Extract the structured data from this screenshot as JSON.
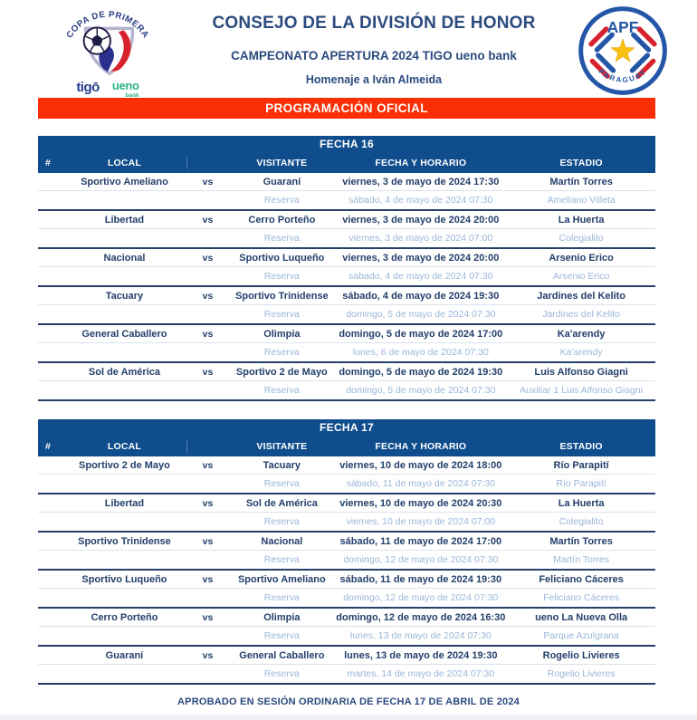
{
  "colors": {
    "navy": "#2b4a7e",
    "table_header_blue": "#0f4d8c",
    "match_text": "#24406b",
    "reserve_text": "#9bb6d9",
    "banner_red": "#fb2e05",
    "tigo_blue": "#243f8f",
    "ueno_green": "#2cb383"
  },
  "header": {
    "title": "CONSEJO DE LA DIVISIÓN DE HONOR",
    "subtitle": "CAMPEONATO APERTURA 2024 TIGO ueno bank",
    "tribute": "Homenaje a Iván Almeida",
    "copa_logo": {
      "arc_text": "COPA DE PRIMERA",
      "sponsor_tigo": "tigō",
      "sponsor_ueno": "ueno",
      "sponsor_ueno_sub": "bank"
    },
    "apf_logo": {
      "top_text": "APF",
      "bottom_text": "PARAGUAY"
    }
  },
  "banner": {
    "label": "PROGRAMACIÓN OFICIAL"
  },
  "table_columns": [
    "#",
    "LOCAL",
    "VISITANTE",
    "FECHA Y HORARIO",
    "ESTADIO"
  ],
  "vs_label": "vs",
  "reserve_label": "Reserva",
  "rounds": [
    {
      "title": "FECHA 16",
      "matches": [
        {
          "local": "Sportivo Ameliano",
          "visitante": "Guaraní",
          "fecha": "viernes, 3 de mayo de 2024 17:30",
          "estadio": "Martín Torres",
          "reserva_fecha": "sábado, 4 de mayo de 2024 07:30",
          "reserva_estadio": "Ameliano Villeta"
        },
        {
          "local": "Libertad",
          "visitante": "Cerro Porteño",
          "fecha": "viernes, 3 de mayo de 2024 20:00",
          "estadio": "La Huerta",
          "reserva_fecha": "viernes, 3 de mayo de 2024 07:00",
          "reserva_estadio": "Colegialito"
        },
        {
          "local": "Nacional",
          "visitante": "Sportivo Luqueño",
          "fecha": "viernes, 3 de mayo de 2024 20:00",
          "estadio": "Arsenio Erico",
          "reserva_fecha": "sábado, 4 de mayo de 2024 07:30",
          "reserva_estadio": "Arsenio Erico"
        },
        {
          "local": "Tacuary",
          "visitante": "Sportivo Trinidense",
          "fecha": "sábado, 4 de mayo de 2024 19:30",
          "estadio": "Jardines del Kelito",
          "reserva_fecha": "domingo, 5 de mayo de 2024 07:30",
          "reserva_estadio": "Jardines del Kelito"
        },
        {
          "local": "General Caballero",
          "visitante": "Olimpia",
          "fecha": "domingo, 5 de mayo de 2024 17:00",
          "estadio": "Ka'arendy",
          "reserva_fecha": "lunes, 6 de mayo de 2024 07:30",
          "reserva_estadio": "Ka'arendy"
        },
        {
          "local": "Sol de América",
          "visitante": "Sportivo 2 de Mayo",
          "fecha": "domingo, 5 de mayo de 2024 19:30",
          "estadio": "Luis Alfonso Giagni",
          "reserva_fecha": "domingo, 5 de mayo de 2024 07:30",
          "reserva_estadio": "Auxiliar 1 Luis Alfonso Giagni"
        }
      ]
    },
    {
      "title": "FECHA 17",
      "matches": [
        {
          "local": "Sportivo 2 de Mayo",
          "visitante": "Tacuary",
          "fecha": "viernes, 10 de mayo de 2024 18:00",
          "estadio": "Río Parapití",
          "reserva_fecha": "sábado, 11 de mayo de 2024 07:30",
          "reserva_estadio": "Río Parapití"
        },
        {
          "local": "Libertad",
          "visitante": "Sol de América",
          "fecha": "viernes, 10 de mayo de 2024 20:30",
          "estadio": "La Huerta",
          "reserva_fecha": "viernes, 10 de mayo de 2024 07:00",
          "reserva_estadio": "Colegialito"
        },
        {
          "local": "Sportivo Trinidense",
          "visitante": "Nacional",
          "fecha": "sábado, 11 de mayo de 2024 17:00",
          "estadio": "Martín Torres",
          "reserva_fecha": "domingo, 12 de mayo de 2024 07:30",
          "reserva_estadio": "Martín Torres"
        },
        {
          "local": "Sportivo Luqueño",
          "visitante": "Sportivo Ameliano",
          "fecha": "sábado, 11 de mayo de 2024 19:30",
          "estadio": "Feliciano Cáceres",
          "reserva_fecha": "domingo, 12 de mayo de 2024 07:30",
          "reserva_estadio": "Feliciano Cáceres"
        },
        {
          "local": "Cerro Porteño",
          "visitante": "Olimpia",
          "fecha": "domingo, 12 de mayo de 2024 16:30",
          "estadio": "ueno La Nueva Olla",
          "reserva_fecha": "lunes, 13 de mayo de 2024 07:30",
          "reserva_estadio": "Parque Azulgrana"
        },
        {
          "local": "Guaraní",
          "visitante": "General Caballero",
          "fecha": "lunes, 13 de mayo de 2024 19:30",
          "estadio": "Rogelio Livieres",
          "reserva_fecha": "martes, 14 de mayo de 2024 07:30",
          "reserva_estadio": "Rogelio Livieres"
        }
      ]
    }
  ],
  "footer": {
    "approval": "APROBADO EN SESIÓN ORDINARIA DE FECHA 17 DE ABRIL DE 2024"
  }
}
